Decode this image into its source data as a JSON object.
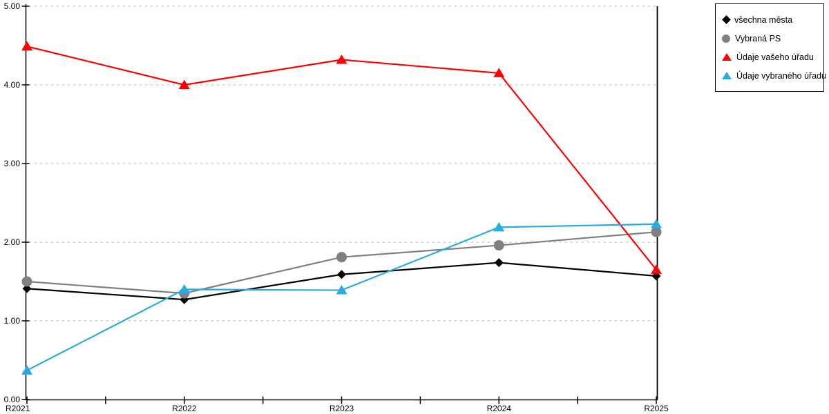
{
  "chart_data": {
    "type": "line",
    "title": "",
    "xlabel": "",
    "ylabel": "",
    "categories": [
      "R2021",
      "R2022",
      "R2023",
      "R2024",
      "R2025"
    ],
    "series": [
      {
        "name": "všechna města",
        "marker": "diamond",
        "color": "#000000",
        "values": [
          1.41,
          1.27,
          1.59,
          1.74,
          1.57
        ]
      },
      {
        "name": "Vybraná PS",
        "marker": "circle",
        "color": "#808080",
        "values": [
          1.5,
          1.35,
          1.81,
          1.96,
          2.13
        ]
      },
      {
        "name": "Údaje vašeho úřadu",
        "marker": "triangle",
        "color": "#FF0000",
        "values": [
          4.49,
          4.0,
          4.32,
          4.15,
          1.65
        ]
      },
      {
        "name": "Údaje vybraného úřadu",
        "marker": "triangle",
        "color": "#29ABE2",
        "values": [
          0.37,
          1.4,
          1.39,
          2.19,
          2.23
        ]
      }
    ],
    "ylim": [
      0,
      5
    ],
    "ytick_values": [
      0,
      1,
      2,
      3,
      4,
      5
    ],
    "ytick_labels": [
      "0.00",
      "1.00",
      "2.00",
      "3.00",
      "4.00",
      "5.00"
    ],
    "grid": "horizontal-dotted",
    "grid_color": "#C8C8C8",
    "axis_color": "#000000",
    "background_color": "#FFFFFF",
    "legend_position": "top-right-outside"
  }
}
